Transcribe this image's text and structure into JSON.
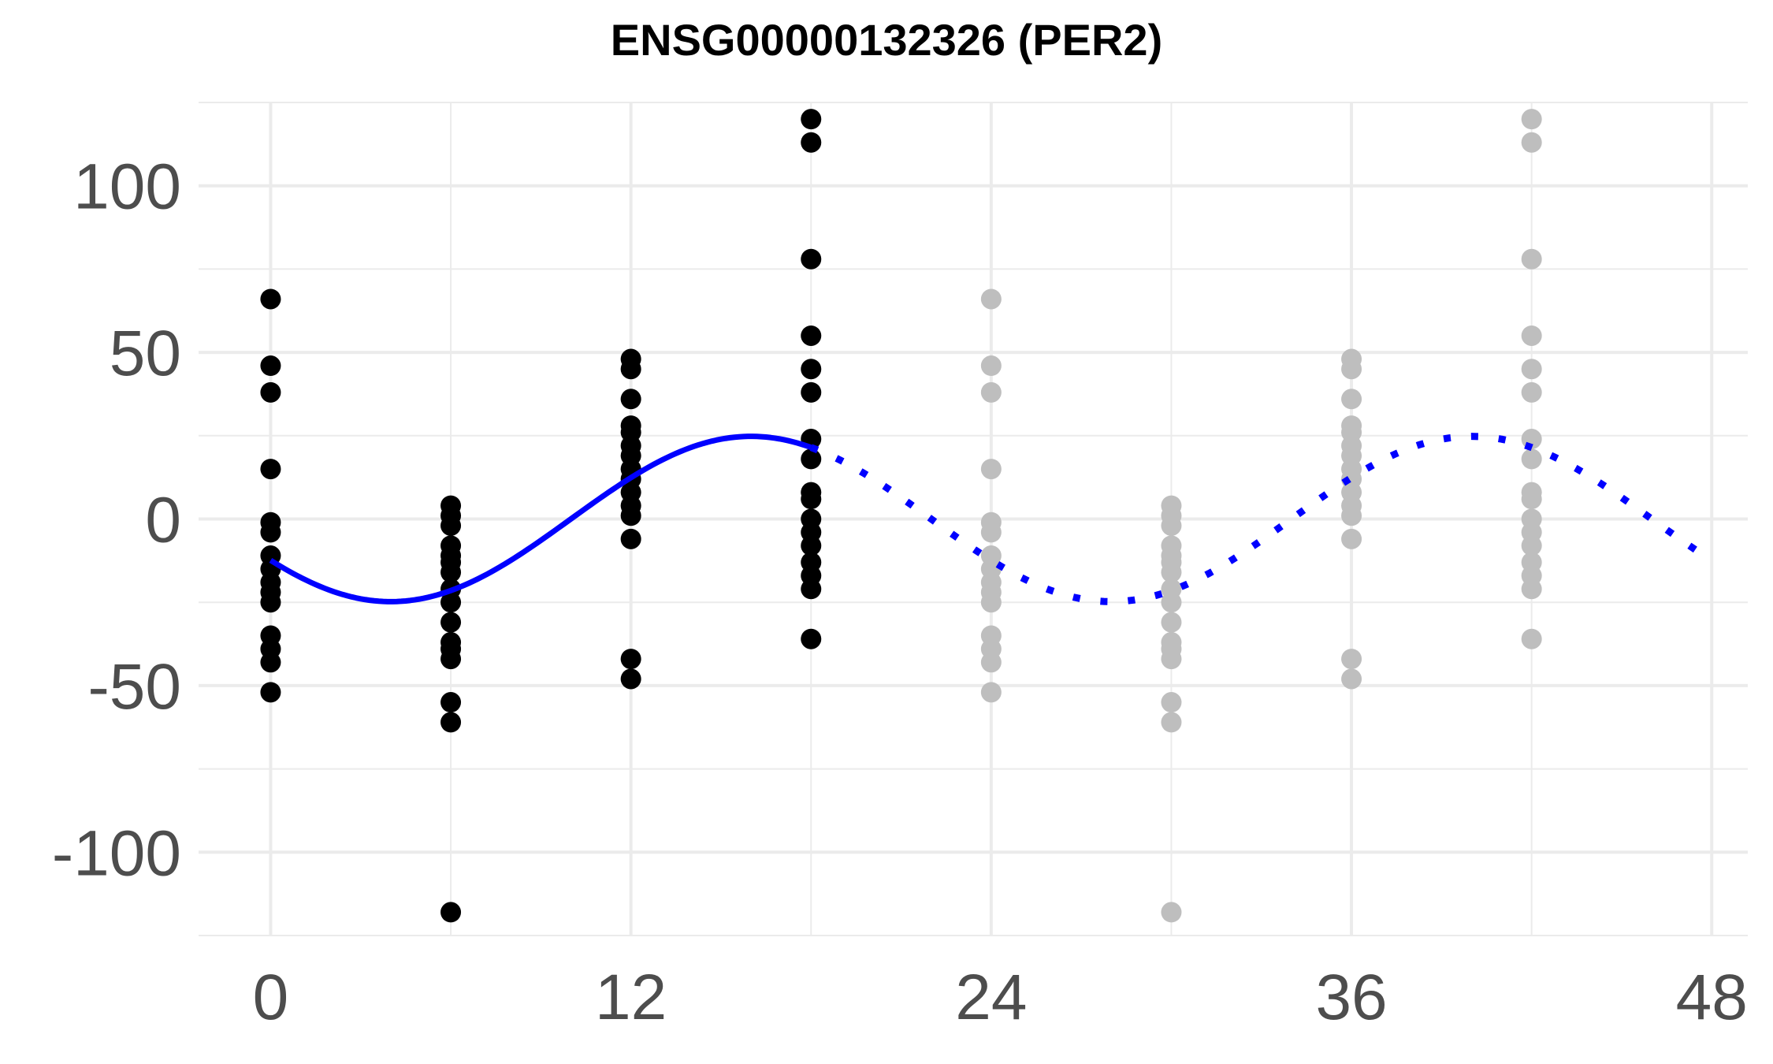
{
  "chart_data": {
    "type": "scatter",
    "title": "ENSG00000132326 (PER2)",
    "xlabel": "",
    "ylabel": "",
    "xlim": [
      -2.4,
      49.2
    ],
    "ylim": [
      -125,
      125
    ],
    "x_ticks": [
      "0",
      "12",
      "24",
      "36",
      "48"
    ],
    "x_tick_values": [
      0,
      12,
      24,
      36,
      48
    ],
    "y_ticks": [
      "100",
      "50",
      "0",
      "-50",
      "-100"
    ],
    "y_tick_values": [
      100,
      50,
      0,
      -50,
      -100
    ],
    "grid": true,
    "colors": {
      "observed": "#000000",
      "replicated": "#bebebe",
      "fit": "#0000ff",
      "grid": "#ebebeb"
    },
    "series": [
      {
        "role": "observed",
        "points": [
          {
            "x": 0,
            "y": 66
          },
          {
            "x": 0,
            "y": 46
          },
          {
            "x": 0,
            "y": 38
          },
          {
            "x": 0,
            "y": 15
          },
          {
            "x": 0,
            "y": -1
          },
          {
            "x": 0,
            "y": -4
          },
          {
            "x": 0,
            "y": -11
          },
          {
            "x": 0,
            "y": -15
          },
          {
            "x": 0,
            "y": -19
          },
          {
            "x": 0,
            "y": -22
          },
          {
            "x": 0,
            "y": -25
          },
          {
            "x": 0,
            "y": -35
          },
          {
            "x": 0,
            "y": -39
          },
          {
            "x": 0,
            "y": -43
          },
          {
            "x": 0,
            "y": -52
          },
          {
            "x": 6,
            "y": 4
          },
          {
            "x": 6,
            "y": 1
          },
          {
            "x": 6,
            "y": -2
          },
          {
            "x": 6,
            "y": -8
          },
          {
            "x": 6,
            "y": -11
          },
          {
            "x": 6,
            "y": -13
          },
          {
            "x": 6,
            "y": -16
          },
          {
            "x": 6,
            "y": -21
          },
          {
            "x": 6,
            "y": -25
          },
          {
            "x": 6,
            "y": -31
          },
          {
            "x": 6,
            "y": -37
          },
          {
            "x": 6,
            "y": -39
          },
          {
            "x": 6,
            "y": -42
          },
          {
            "x": 6,
            "y": -55
          },
          {
            "x": 6,
            "y": -61
          },
          {
            "x": 6,
            "y": -118
          },
          {
            "x": 12,
            "y": 48
          },
          {
            "x": 12,
            "y": 45
          },
          {
            "x": 12,
            "y": 36
          },
          {
            "x": 12,
            "y": 28
          },
          {
            "x": 12,
            "y": 26
          },
          {
            "x": 12,
            "y": 22
          },
          {
            "x": 12,
            "y": 19
          },
          {
            "x": 12,
            "y": 15
          },
          {
            "x": 12,
            "y": 12
          },
          {
            "x": 12,
            "y": 8
          },
          {
            "x": 12,
            "y": 4
          },
          {
            "x": 12,
            "y": 1
          },
          {
            "x": 12,
            "y": -6
          },
          {
            "x": 12,
            "y": -42
          },
          {
            "x": 12,
            "y": -48
          },
          {
            "x": 18,
            "y": 120
          },
          {
            "x": 18,
            "y": 113
          },
          {
            "x": 18,
            "y": 78
          },
          {
            "x": 18,
            "y": 55
          },
          {
            "x": 18,
            "y": 45
          },
          {
            "x": 18,
            "y": 38
          },
          {
            "x": 18,
            "y": 24
          },
          {
            "x": 18,
            "y": 18
          },
          {
            "x": 18,
            "y": 8
          },
          {
            "x": 18,
            "y": 6
          },
          {
            "x": 18,
            "y": 0
          },
          {
            "x": 18,
            "y": -4
          },
          {
            "x": 18,
            "y": -8
          },
          {
            "x": 18,
            "y": -13
          },
          {
            "x": 18,
            "y": -17
          },
          {
            "x": 18,
            "y": -21
          },
          {
            "x": 18,
            "y": -36
          }
        ]
      },
      {
        "role": "replicated",
        "points": [
          {
            "x": 24,
            "y": 66
          },
          {
            "x": 24,
            "y": 46
          },
          {
            "x": 24,
            "y": 38
          },
          {
            "x": 24,
            "y": 15
          },
          {
            "x": 24,
            "y": -1
          },
          {
            "x": 24,
            "y": -4
          },
          {
            "x": 24,
            "y": -11
          },
          {
            "x": 24,
            "y": -15
          },
          {
            "x": 24,
            "y": -19
          },
          {
            "x": 24,
            "y": -22
          },
          {
            "x": 24,
            "y": -25
          },
          {
            "x": 24,
            "y": -35
          },
          {
            "x": 24,
            "y": -39
          },
          {
            "x": 24,
            "y": -43
          },
          {
            "x": 24,
            "y": -52
          },
          {
            "x": 30,
            "y": 4
          },
          {
            "x": 30,
            "y": 1
          },
          {
            "x": 30,
            "y": -2
          },
          {
            "x": 30,
            "y": -8
          },
          {
            "x": 30,
            "y": -11
          },
          {
            "x": 30,
            "y": -13
          },
          {
            "x": 30,
            "y": -16
          },
          {
            "x": 30,
            "y": -21
          },
          {
            "x": 30,
            "y": -25
          },
          {
            "x": 30,
            "y": -31
          },
          {
            "x": 30,
            "y": -37
          },
          {
            "x": 30,
            "y": -39
          },
          {
            "x": 30,
            "y": -42
          },
          {
            "x": 30,
            "y": -55
          },
          {
            "x": 30,
            "y": -61
          },
          {
            "x": 30,
            "y": -118
          },
          {
            "x": 36,
            "y": 48
          },
          {
            "x": 36,
            "y": 45
          },
          {
            "x": 36,
            "y": 36
          },
          {
            "x": 36,
            "y": 28
          },
          {
            "x": 36,
            "y": 26
          },
          {
            "x": 36,
            "y": 22
          },
          {
            "x": 36,
            "y": 19
          },
          {
            "x": 36,
            "y": 15
          },
          {
            "x": 36,
            "y": 12
          },
          {
            "x": 36,
            "y": 8
          },
          {
            "x": 36,
            "y": 4
          },
          {
            "x": 36,
            "y": 1
          },
          {
            "x": 36,
            "y": -6
          },
          {
            "x": 36,
            "y": -42
          },
          {
            "x": 36,
            "y": -48
          },
          {
            "x": 42,
            "y": 120
          },
          {
            "x": 42,
            "y": 113
          },
          {
            "x": 42,
            "y": 78
          },
          {
            "x": 42,
            "y": 55
          },
          {
            "x": 42,
            "y": 45
          },
          {
            "x": 42,
            "y": 38
          },
          {
            "x": 42,
            "y": 24
          },
          {
            "x": 42,
            "y": 18
          },
          {
            "x": 42,
            "y": 8
          },
          {
            "x": 42,
            "y": 6
          },
          {
            "x": 42,
            "y": 0
          },
          {
            "x": 42,
            "y": -4
          },
          {
            "x": 42,
            "y": -8
          },
          {
            "x": 42,
            "y": -13
          },
          {
            "x": 42,
            "y": -17
          },
          {
            "x": 42,
            "y": -21
          },
          {
            "x": 42,
            "y": -36
          }
        ]
      }
    ],
    "fit": {
      "type": "cosinor",
      "period": 24,
      "mesor": 0,
      "amplitude": 24.8,
      "acrophase": 16,
      "solid_range": [
        0,
        18
      ],
      "dotted_range": [
        18,
        48
      ]
    }
  }
}
